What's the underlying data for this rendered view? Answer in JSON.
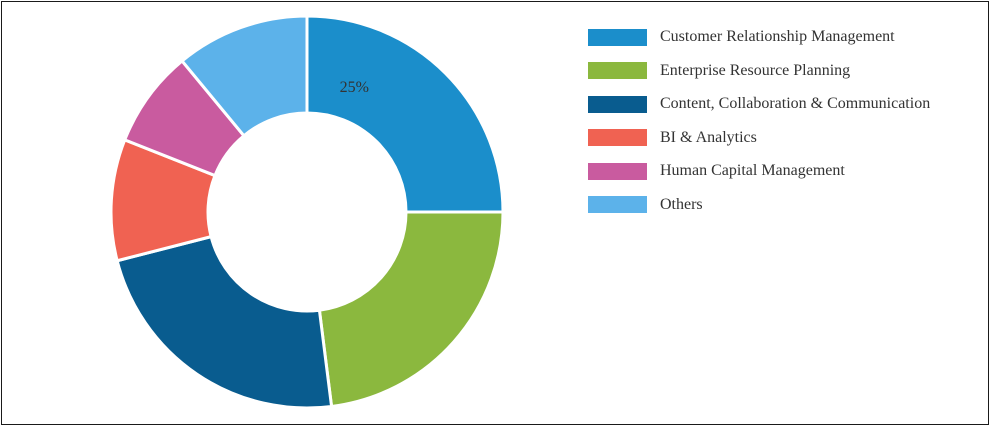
{
  "chart_data": {
    "type": "pie",
    "variant": "donut",
    "title": "",
    "categories": [
      "Customer Relationship Management",
      "Enterprise Resource Planning",
      "Content, Collaboration & Communication",
      "BI & Analytics",
      "Human Capital Management",
      "Others"
    ],
    "values": [
      25,
      23,
      23,
      10,
      8,
      11
    ],
    "unit": "%",
    "colors": [
      "#1B8ECB",
      "#8BB83E",
      "#095C8F",
      "#F06252",
      "#C95B9F",
      "#5CB2EA"
    ],
    "data_labels": [
      {
        "slice": 0,
        "text": "25%"
      }
    ],
    "legend": {
      "placement": "right",
      "items": [
        "Customer Relationship Management",
        "Enterprise Resource Planning",
        "Content, Collaboration & Communication",
        "BI & Analytics",
        "Human Capital Management",
        "Others"
      ]
    }
  }
}
